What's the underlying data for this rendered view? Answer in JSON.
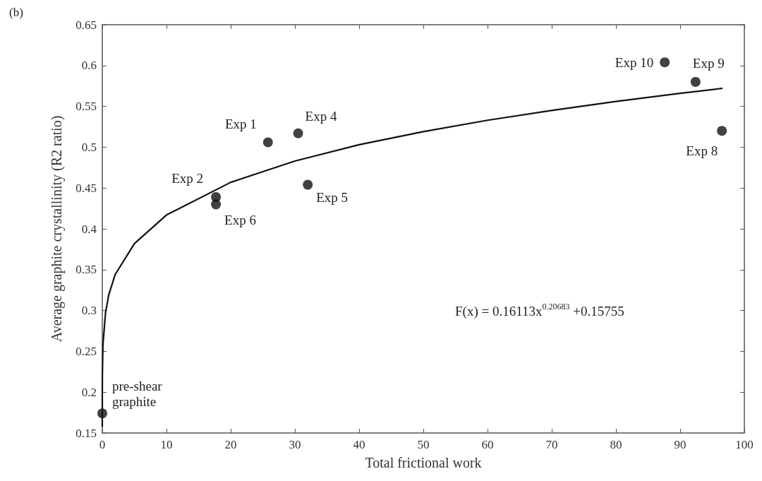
{
  "chart_data": {
    "type": "scatter",
    "title": "(b)",
    "xlabel": "Total frictional work",
    "ylabel": "Average graphite crystallinity (R2 ratio)",
    "xlim": [
      0,
      100
    ],
    "xticks": [
      0,
      10,
      20,
      30,
      40,
      50,
      60,
      70,
      80,
      90,
      100
    ],
    "ylim": [
      0.15,
      0.65
    ],
    "yticks": [
      0.15,
      0.2,
      0.25,
      0.3,
      0.35,
      0.4,
      0.45,
      0.5,
      0.55,
      0.6,
      0.65
    ],
    "grid": false,
    "marker": "circle",
    "series": [
      {
        "color": "#111111",
        "x": [
          0,
          17.7,
          17.7,
          25.8,
          30.5,
          32.0,
          87.6,
          92.4,
          96.5
        ],
        "values": [
          0.174,
          0.439,
          0.43,
          0.506,
          0.517,
          0.454,
          0.604,
          0.58,
          0.52
        ]
      },
      {
        "type": "line",
        "color": "#111111",
        "marker": "none",
        "line_style": "solid",
        "x": [
          0,
          0.001,
          0.01,
          0.1,
          0.5,
          1,
          2,
          5,
          10,
          20,
          30,
          40,
          50,
          60,
          70,
          80,
          90,
          96.5
        ],
        "values": [
          0.158,
          0.196,
          0.22,
          0.258,
          0.297,
          0.319,
          0.344,
          0.382,
          0.417,
          0.457,
          0.483,
          0.503,
          0.519,
          0.533,
          0.545,
          0.556,
          0.566,
          0.572
        ]
      }
    ],
    "annotations": [
      {
        "text": "pre-shear\ngraphite",
        "x": 0,
        "y": 0.174
      },
      {
        "text": "Exp 2",
        "x": 17.7,
        "y": 0.439
      },
      {
        "text": "Exp 6",
        "x": 17.7,
        "y": 0.43
      },
      {
        "text": "Exp 1",
        "x": 25.8,
        "y": 0.506
      },
      {
        "text": "Exp 4",
        "x": 30.5,
        "y": 0.517
      },
      {
        "text": "Exp 5",
        "x": 32.0,
        "y": 0.454
      },
      {
        "text": "Exp 10",
        "x": 87.6,
        "y": 0.604
      },
      {
        "text": "Exp 9",
        "x": 92.4,
        "y": 0.58
      },
      {
        "text": "Exp 8",
        "x": 96.5,
        "y": 0.52
      },
      "F(x) = 0.16113x$^{0.20683}$ +0.15755"
    ]
  }
}
